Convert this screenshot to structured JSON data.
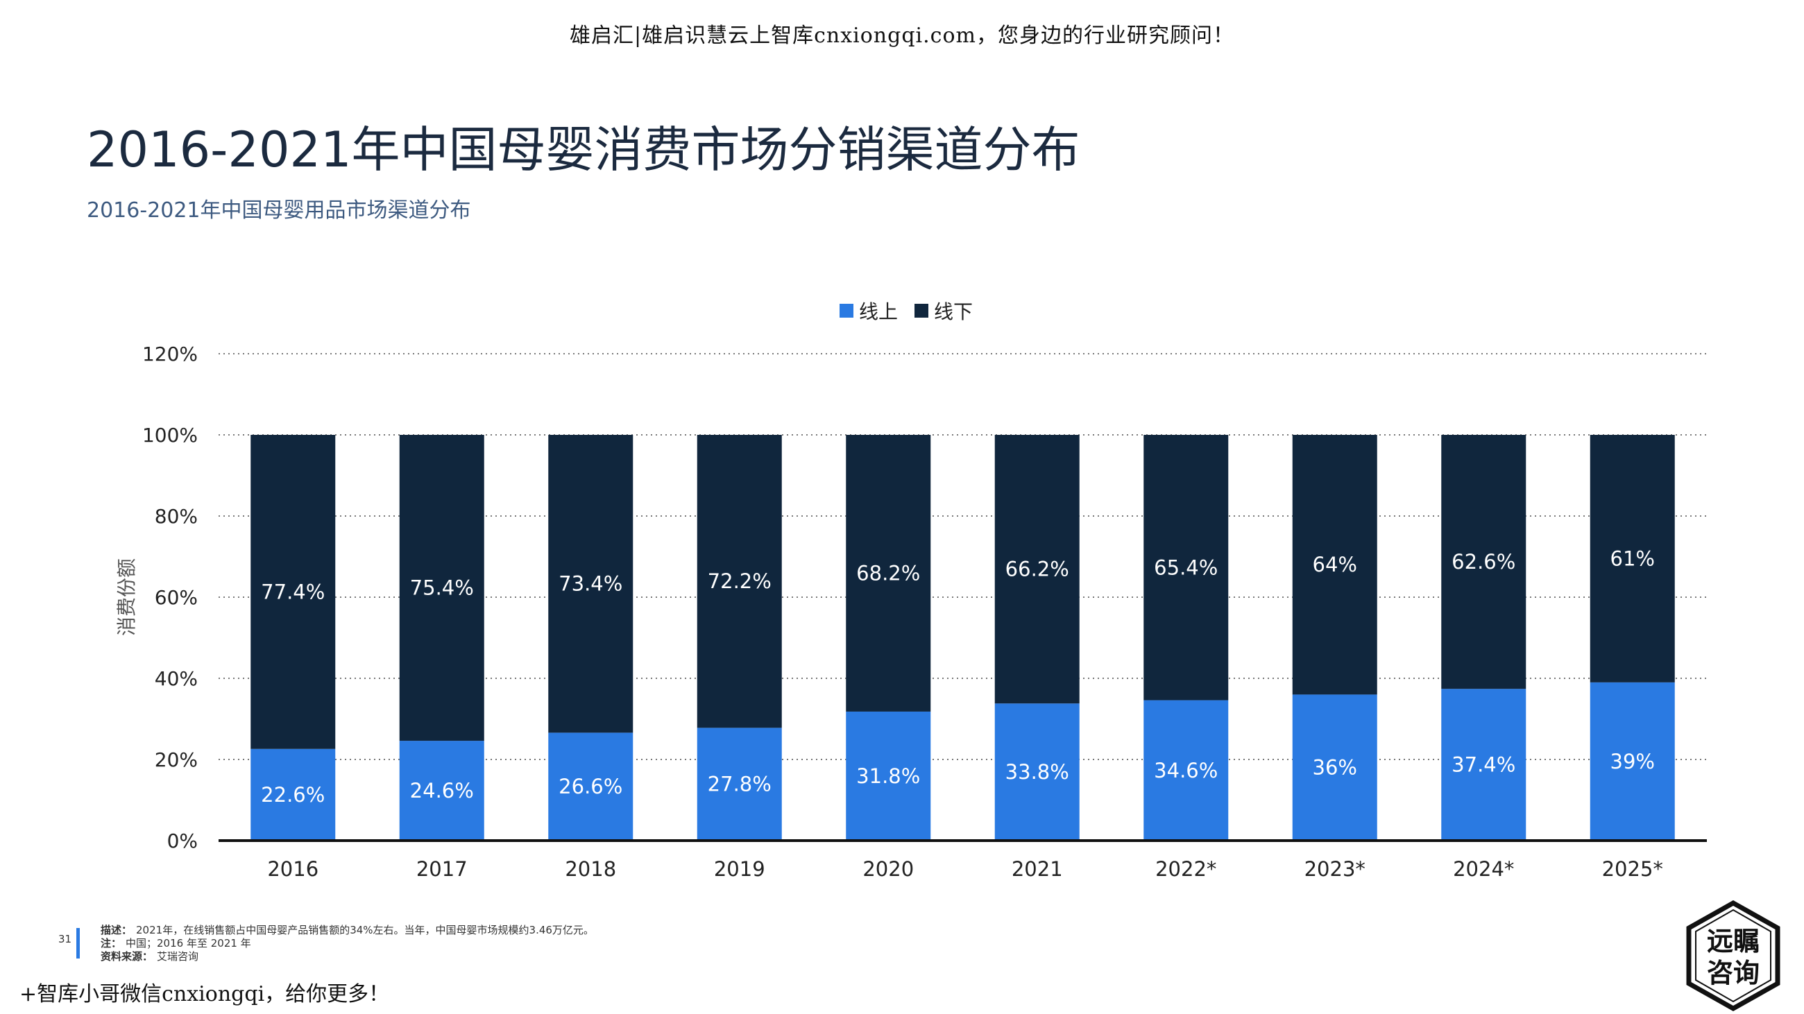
{
  "watermark_top": "雄启汇|雄启识慧云上智库cnxiongqi.com，您身边的行业研究顾问！",
  "title": "2016-2021年中国母婴消费市场分销渠道分布",
  "subtitle": "2016-2021年中国母婴用品市场渠道分布",
  "page_number": "31",
  "notes": [
    {
      "label": "描述：",
      "text": "2021年，在线销售额占中国母婴产品销售额的34%左右。当年，中国母婴市场规模约3.46万亿元。"
    },
    {
      "label": "注：",
      "text": "中国；2016 年至 2021 年"
    },
    {
      "label": "资料来源：",
      "text": "艾瑞咨询"
    }
  ],
  "watermark_bottom": "+智库小哥微信cnxiongqi，给你更多！",
  "logo": {
    "line1": "远瞩",
    "line2": "咨询"
  },
  "colors": {
    "online": "#2a7ae2",
    "offline": "#10263d",
    "grid": "#777777",
    "axis": "#111111"
  },
  "chart_data": {
    "type": "bar",
    "stacked": true,
    "title": "",
    "xlabel": "",
    "ylabel": "消费份额",
    "ylim": [
      0,
      120
    ],
    "yticks": [
      "0%",
      "20%",
      "40%",
      "60%",
      "80%",
      "100%",
      "120%"
    ],
    "grid": "horizontal dotted",
    "legend_position": "top-center",
    "categories": [
      "2016",
      "2017",
      "2018",
      "2019",
      "2020",
      "2021",
      "2022*",
      "2023*",
      "2024*",
      "2025*"
    ],
    "series": [
      {
        "name": "线上",
        "values": [
          22.6,
          24.6,
          26.6,
          27.8,
          31.8,
          33.8,
          34.6,
          36,
          37.4,
          39
        ],
        "labels": [
          "22.6%",
          "24.6%",
          "26.6%",
          "27.8%",
          "31.8%",
          "33.8%",
          "34.6%",
          "36%",
          "37.4%",
          "39%"
        ]
      },
      {
        "name": "线下",
        "values": [
          77.4,
          75.4,
          73.4,
          72.2,
          68.2,
          66.2,
          65.4,
          64,
          62.6,
          61
        ],
        "labels": [
          "77.4%",
          "75.4%",
          "73.4%",
          "72.2%",
          "68.2%",
          "66.2%",
          "65.4%",
          "64%",
          "62.6%",
          "61%"
        ]
      }
    ]
  }
}
